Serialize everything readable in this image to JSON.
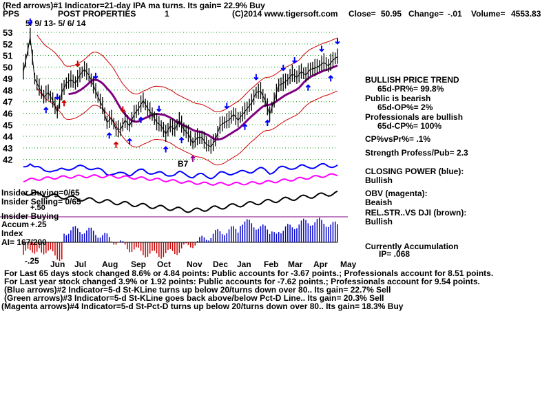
{
  "header": {
    "line1": "(Red arrows)#1 Indicator=21-day IPA ma turns. Its gain= 22.9% Buy",
    "symbol": "PPS",
    "company": "POST PROPERTIES",
    "chart_no": "1",
    "copyright": "(C)2014 www.tigersoft.com",
    "close_label": "Close=",
    "close": "50.95",
    "change_label": "Change=",
    "change": "-.01",
    "volume_label": "Volume=",
    "volume": "4553.83",
    "date_range": "5/ 9/ 13- 5/ 6/ 14"
  },
  "panel_labels": {
    "insider_buying_top": "Insider Buying=0/65",
    "insider_selling": "Insider Selling= 0/65",
    "plus50": "+.50",
    "insider_buying": "Insider Buying",
    "accum_title": "Accum",
    "accum_index": "Index",
    "plus25": "+.25",
    "ai": "AI= 167/200",
    "minus25": "-.25",
    "b7": "B7"
  },
  "side_panel": {
    "trend": "BULLISH PRICE TREND",
    "pr": "65d-PR%= 99.8%",
    "public_label": "Public is bearish",
    "op": "65d-OP%= 2%",
    "pros_label": "Professionals are bullish",
    "cp": "65d-CP%= 100%",
    "cpvs": "CP%vsPr%= .1%",
    "strength": "Strength Profess/Pub= 2.3",
    "closing_power": "CLOSING POWER (blue):",
    "closing_power_val": "Bullish",
    "obv": "OBV (magenta):",
    "obv_val": "Beaish",
    "relstr": "REL.STR..VS DJI (brown):",
    "relstr_val": "Bullish",
    "accum": "Currently Accumulation",
    "ip": "IP= .068"
  },
  "footer": {
    "l1": "For Last 65 days stock changed  8.6% or  4.84 points:  Public accounts for -3.67 points.;  Professionals account for  8.51 points.",
    "l2": "For Last year stock changed  3.9% or  1.92 points:  Public accounts for -7.62 points.;  Professionals account for  9.54 points.",
    "l3": "(Blue arrows)#2 Indicator=5-d St-KLine turns up below 20/turns down over 80.. Its gain= 22.7% Sell",
    "l4": "(Green arrows)#3 Indicator=5-d St-KLine goes back above/below Pct-D Line.. Its gain= 20.3% Sell",
    "l5": "(Magenta arrows)#4 Indicator=5-d St-Pct-D turns up below 20/turns down over 80.. Its gain= 18.3% Buy"
  },
  "colors": {
    "price": "#000000",
    "band": "#cc0000",
    "ma": "#800080",
    "closing_power": "#0000ff",
    "obv": "#ff00ff",
    "relstr": "#000000",
    "accum_pos": "#0000cc",
    "accum_neg": "#cc0000",
    "grid": "#009900"
  },
  "chart_data": {
    "type": "line",
    "title": "POST PROPERTIES",
    "x_labels": [
      "Jun",
      "Jul",
      "Aug",
      "Sep",
      "Oct",
      "Nov",
      "Dec",
      "Jan",
      "Feb",
      "Mar",
      "Apr",
      "May"
    ],
    "y_ticks": [
      42,
      43,
      44,
      45,
      46,
      47,
      48,
      49,
      50,
      51,
      52,
      53
    ],
    "ylim": [
      41.5,
      53.3
    ],
    "grid": true,
    "series": [
      {
        "name": "price",
        "points": [
          [
            0,
            49.6
          ],
          [
            2,
            51.5
          ],
          [
            3,
            52.6
          ],
          [
            5,
            49
          ],
          [
            7,
            48.2
          ],
          [
            9,
            47.4
          ],
          [
            11,
            47.8
          ],
          [
            13,
            47.1
          ],
          [
            15,
            46.1
          ],
          [
            17,
            47.8
          ],
          [
            19,
            48.6
          ],
          [
            21,
            48.9
          ],
          [
            23,
            48.6
          ],
          [
            25,
            49.3
          ],
          [
            27,
            49.8
          ],
          [
            29,
            49.3
          ],
          [
            31,
            48.4
          ],
          [
            33,
            47.4
          ],
          [
            35,
            46.6
          ],
          [
            37,
            45.2
          ],
          [
            39,
            45.6
          ],
          [
            41,
            44.6
          ],
          [
            43,
            44.6
          ],
          [
            45,
            45.4
          ],
          [
            47,
            44.9
          ],
          [
            49,
            45.9
          ],
          [
            51,
            46.4
          ],
          [
            53,
            47.1
          ],
          [
            55,
            46.4
          ],
          [
            57,
            45.9
          ],
          [
            59,
            45.2
          ],
          [
            61,
            44.9
          ],
          [
            63,
            44.2
          ],
          [
            65,
            44.9
          ],
          [
            67,
            44.6
          ],
          [
            69,
            45.4
          ],
          [
            71,
            44.6
          ],
          [
            73,
            44.2
          ],
          [
            75,
            43.4
          ],
          [
            77,
            43.9
          ],
          [
            79,
            43.9
          ],
          [
            81,
            43.3
          ],
          [
            83,
            43.1
          ],
          [
            85,
            43.7
          ],
          [
            87,
            44.9
          ],
          [
            89,
            45.2
          ],
          [
            91,
            45.4
          ],
          [
            93,
            45.9
          ],
          [
            95,
            45.4
          ],
          [
            97,
            45.9
          ],
          [
            99,
            46.4
          ],
          [
            101,
            46.9
          ],
          [
            103,
            47.8
          ],
          [
            105,
            47.9
          ],
          [
            107,
            47.1
          ],
          [
            109,
            45.9
          ],
          [
            111,
            47.1
          ],
          [
            113,
            48.4
          ],
          [
            115,
            48.6
          ],
          [
            117,
            48.9
          ],
          [
            119,
            49.4
          ],
          [
            121,
            49.1
          ],
          [
            123,
            49.6
          ],
          [
            125,
            49.3
          ],
          [
            127,
            49.8
          ],
          [
            129,
            49.9
          ],
          [
            131,
            50.1
          ],
          [
            133,
            50.4
          ],
          [
            135,
            50.1
          ],
          [
            137,
            50.6
          ],
          [
            139,
            50.9
          ]
        ]
      }
    ]
  }
}
